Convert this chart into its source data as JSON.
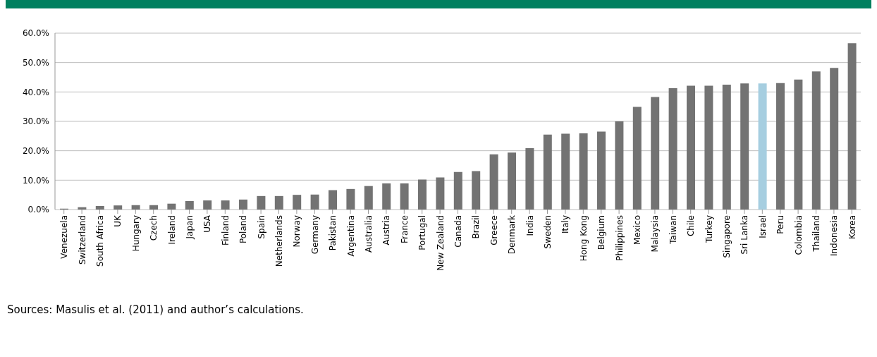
{
  "chart_data": {
    "type": "bar",
    "categories": [
      "Venezuela",
      "Switzerland",
      "South Africa",
      "UK",
      "Hungary",
      "Czech",
      "Ireland",
      "Japan",
      "USA",
      "Finland",
      "Poland",
      "Spain",
      "Netherlands",
      "Norway",
      "Germany",
      "Pakistan",
      "Argentina",
      "Australia",
      "Austria",
      "France",
      "Portugal",
      "New Zealand",
      "Canada",
      "Brazil",
      "Greece",
      "Denmark",
      "India",
      "Sweden",
      "Italy",
      "Hong Kong",
      "Belgium",
      "Philippines",
      "Mexico",
      "Malaysia",
      "Taiwan",
      "Chile",
      "Turkey",
      "Singapore",
      "Sri Lanka",
      "Israel",
      "Peru",
      "Colombia",
      "Thailand",
      "Indonesia",
      "Korea"
    ],
    "values": [
      0.3,
      0.8,
      1.2,
      1.4,
      1.5,
      1.5,
      2.0,
      2.9,
      3.1,
      3.1,
      3.4,
      4.6,
      4.6,
      5.0,
      5.1,
      6.6,
      7.0,
      8.0,
      8.9,
      8.9,
      10.2,
      10.9,
      12.8,
      13.1,
      18.8,
      19.4,
      20.9,
      25.5,
      25.8,
      25.9,
      26.5,
      30.0,
      34.9,
      38.3,
      41.3,
      42.1,
      42.1,
      42.5,
      42.9,
      42.9,
      43.0,
      44.2,
      47.0,
      48.2,
      56.6
    ],
    "colors": [
      "#737373",
      "#737373",
      "#737373",
      "#737373",
      "#737373",
      "#737373",
      "#737373",
      "#737373",
      "#737373",
      "#737373",
      "#737373",
      "#737373",
      "#737373",
      "#737373",
      "#737373",
      "#737373",
      "#737373",
      "#737373",
      "#737373",
      "#737373",
      "#737373",
      "#737373",
      "#737373",
      "#737373",
      "#737373",
      "#737373",
      "#737373",
      "#737373",
      "#737373",
      "#737373",
      "#737373",
      "#737373",
      "#737373",
      "#737373",
      "#737373",
      "#737373",
      "#737373",
      "#737373",
      "#737373",
      "#a6cee0",
      "#737373",
      "#737373",
      "#737373",
      "#737373",
      "#737373"
    ],
    "ylim": [
      0,
      60
    ],
    "yticks": [
      {
        "value": 0,
        "label": "0.0%"
      },
      {
        "value": 10,
        "label": "10.0%"
      },
      {
        "value": 20,
        "label": "20.0%"
      },
      {
        "value": 30,
        "label": "30.0%"
      },
      {
        "value": 40,
        "label": "40.0%"
      },
      {
        "value": 50,
        "label": "50.0%"
      },
      {
        "value": 60,
        "label": "60.0%"
      }
    ],
    "grid": "y",
    "legend": false,
    "annotations": [
      "Sources: Masulis et al. (2011) and author’s calculations."
    ]
  }
}
